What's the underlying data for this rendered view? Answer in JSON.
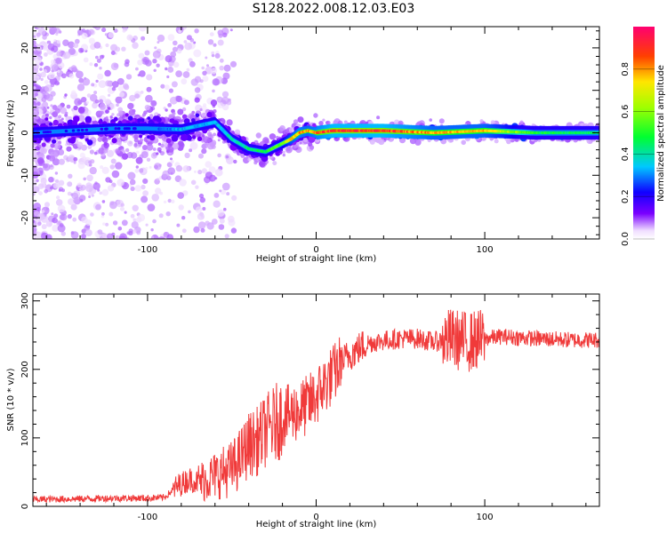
{
  "figure_title": "S128.2022.008.12.03.E03",
  "chart_data": [
    {
      "type": "heatmap",
      "title": "",
      "xlabel": "Height of straight line (km)",
      "ylabel": "Frequency (Hz)",
      "xlim": [
        -168,
        168
      ],
      "ylim": [
        -25,
        25
      ],
      "x_ticks": [
        -100,
        0,
        100
      ],
      "y_ticks": [
        -20,
        -10,
        0,
        10,
        20
      ],
      "colorbar": {
        "label": "Normalized spectral amplitude",
        "range": [
          0,
          1
        ],
        "ticks": [
          0.0,
          0.2,
          0.4,
          0.6,
          0.8
        ]
      },
      "ridge": {
        "x": [
          -168,
          -140,
          -120,
          -100,
          -80,
          -60,
          -50,
          -40,
          -30,
          -20,
          -15,
          -10,
          -5,
          0,
          10,
          40,
          70,
          100,
          130,
          168
        ],
        "frequency": [
          0,
          0.6,
          1,
          1,
          0.8,
          2.5,
          -1.5,
          -3.8,
          -4.5,
          -2.5,
          -1.5,
          0,
          0.5,
          0,
          0.5,
          0.5,
          0,
          0.5,
          0,
          0
        ],
        "amplitude": [
          0.2,
          0.22,
          0.22,
          0.22,
          0.35,
          0.35,
          0.4,
          0.45,
          0.5,
          0.6,
          0.75,
          0.85,
          0.8,
          0.85,
          0.95,
          0.95,
          0.8,
          0.8,
          0.5,
          0.45
        ]
      }
    },
    {
      "type": "line",
      "title": "",
      "xlabel": "Height of straight line (km)",
      "ylabel": "SNR (10 * v/v)",
      "xlim": [
        -168,
        168
      ],
      "ylim": [
        0,
        310
      ],
      "x_ticks": [
        -100,
        0,
        100
      ],
      "y_ticks": [
        0,
        100,
        200,
        300
      ],
      "series": [
        {
          "name": "SNR",
          "color": "#f03a3a",
          "x": [
            -168,
            -140,
            -120,
            -100,
            -90,
            -82,
            -75,
            -70,
            -60,
            -50,
            -45,
            -40,
            -35,
            -30,
            -25,
            -20,
            -15,
            -10,
            -5,
            0,
            5,
            10,
            15,
            20,
            25,
            30,
            40,
            50,
            60,
            70,
            80,
            90,
            100,
            110,
            130,
            150,
            168
          ],
          "values": [
            10,
            11,
            12,
            12,
            13,
            30,
            40,
            35,
            45,
            55,
            70,
            90,
            95,
            110,
            120,
            130,
            135,
            140,
            148,
            160,
            178,
            192,
            210,
            222,
            230,
            238,
            242,
            245,
            245,
            240,
            245,
            240,
            245,
            248,
            245,
            243,
            243
          ]
        }
      ]
    }
  ]
}
